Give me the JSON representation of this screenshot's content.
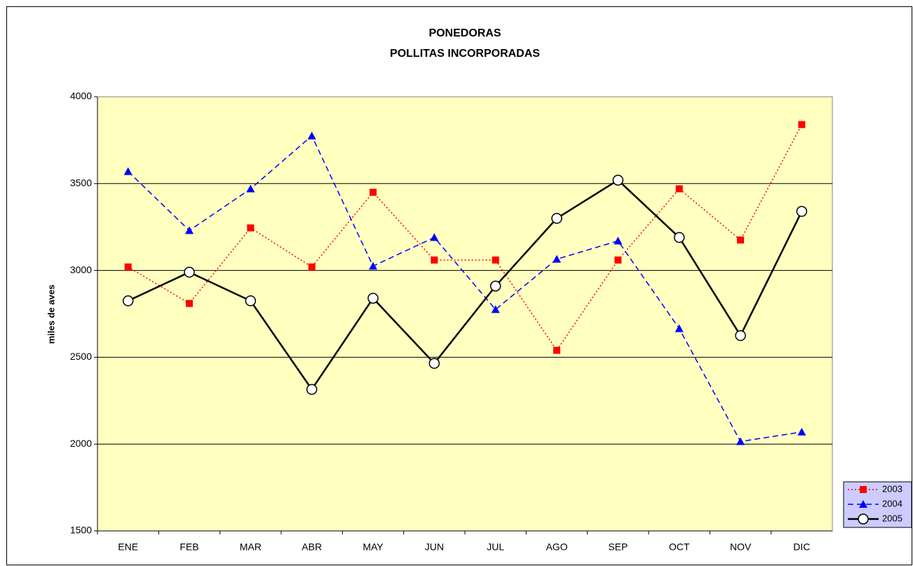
{
  "chart_data": {
    "type": "line",
    "title": "PONEDORAS",
    "subtitle": "POLLITAS INCORPORADAS",
    "y_label": "miles de aves",
    "categories": [
      "ENE",
      "FEB",
      "MAR",
      "ABR",
      "MAY",
      "JUN",
      "JUL",
      "AGO",
      "SEP",
      "OCT",
      "NOV",
      "DIC"
    ],
    "series": [
      {
        "name": "2003",
        "color": "#ff0000",
        "style": "dotted",
        "marker": "square",
        "values": [
          3020,
          2810,
          3245,
          3020,
          3450,
          3060,
          3060,
          2540,
          3060,
          3470,
          3175,
          3840
        ]
      },
      {
        "name": "2004",
        "color": "#0000ff",
        "style": "dashed",
        "marker": "triangle",
        "values": [
          3570,
          3230,
          3470,
          3775,
          3025,
          3190,
          2775,
          3065,
          3170,
          2665,
          2015,
          2070
        ]
      },
      {
        "name": "2005",
        "color": "#000000",
        "style": "solid",
        "marker": "circle",
        "values": [
          2825,
          2990,
          2825,
          2315,
          2840,
          2465,
          2910,
          3300,
          3520,
          3190,
          2625,
          3340
        ]
      }
    ],
    "ylim": [
      1500,
      4000
    ],
    "yticks": [
      1500,
      2000,
      2500,
      3000,
      3500,
      4000
    ],
    "grid": true,
    "legend": "lower right"
  }
}
